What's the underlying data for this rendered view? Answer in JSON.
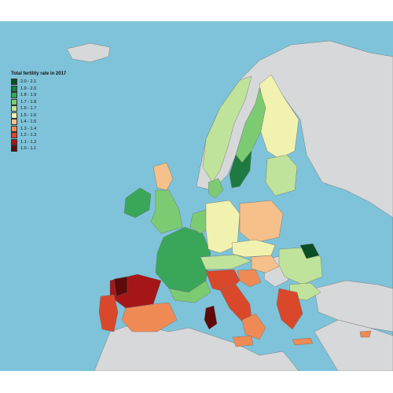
{
  "legend": {
    "title": "Total fertility rate in 2017",
    "items": [
      {
        "label": "2.0 - 2.1",
        "color": "#0b4d24"
      },
      {
        "label": "1.9 - 2.0",
        "color": "#1e7a40"
      },
      {
        "label": "1.8 - 1.9",
        "color": "#3aa65a"
      },
      {
        "label": "1.7 - 1.8",
        "color": "#7ccb72"
      },
      {
        "label": "1.6 - 1.7",
        "color": "#bfe39a"
      },
      {
        "label": "1.5 - 1.6",
        "color": "#f2f2b0"
      },
      {
        "label": "1.4 - 1.5",
        "color": "#f6c08a"
      },
      {
        "label": "1.3 - 1.4",
        "color": "#ef8a55"
      },
      {
        "label": "1.2 - 1.3",
        "color": "#d9482b"
      },
      {
        "label": "1.1 - 1.2",
        "color": "#a51618"
      },
      {
        "label": "1.0 - 1.1",
        "color": "#5c0a0a"
      }
    ]
  },
  "colors": {
    "sea": "#7ec3d9",
    "no_data_land": "#d6d8da",
    "border": "#6b6b6b"
  }
}
